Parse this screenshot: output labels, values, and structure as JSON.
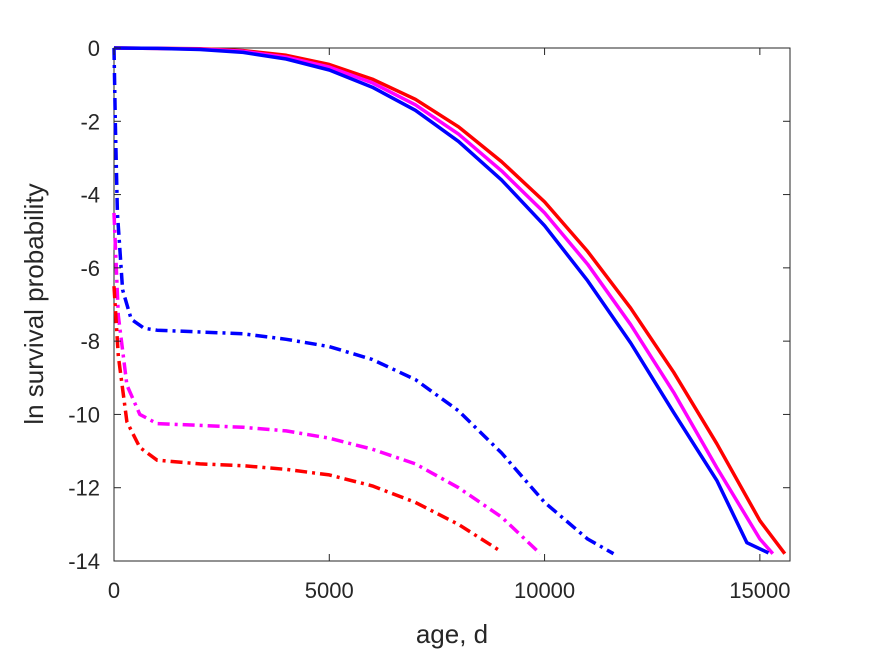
{
  "chart_data": {
    "type": "line",
    "title": "",
    "xlabel": "age, d",
    "ylabel": "ln survival probability",
    "xlim": [
      0,
      15700
    ],
    "ylim": [
      -14,
      0
    ],
    "xticks": [
      0,
      5000,
      10000,
      15000
    ],
    "yticks": [
      0,
      -2,
      -4,
      -6,
      -8,
      -10,
      -12,
      -14
    ],
    "xtick_labels": [
      "0",
      "5000",
      "10000",
      "15000"
    ],
    "ytick_labels": [
      "0",
      "-2",
      "-4",
      "-6",
      "-8",
      "-10",
      "-12",
      "-14"
    ],
    "grid": false,
    "legend": "none",
    "series": [
      {
        "color": "#ff0000",
        "style": "solid",
        "points": [
          [
            0,
            0
          ],
          [
            1000,
            -0.01
          ],
          [
            2000,
            -0.02
          ],
          [
            3000,
            -0.07
          ],
          [
            4000,
            -0.2
          ],
          [
            5000,
            -0.45
          ],
          [
            6000,
            -0.85
          ],
          [
            7000,
            -1.4
          ],
          [
            8000,
            -2.15
          ],
          [
            9000,
            -3.1
          ],
          [
            10000,
            -4.2
          ],
          [
            11000,
            -5.55
          ],
          [
            12000,
            -7.1
          ],
          [
            13000,
            -8.85
          ],
          [
            14000,
            -10.8
          ],
          [
            15000,
            -12.9
          ],
          [
            15580,
            -13.8
          ]
        ]
      },
      {
        "color": "#ff00ff",
        "style": "solid",
        "points": [
          [
            0,
            0
          ],
          [
            1000,
            -0.01
          ],
          [
            2000,
            -0.03
          ],
          [
            3000,
            -0.09
          ],
          [
            4000,
            -0.25
          ],
          [
            5000,
            -0.52
          ],
          [
            6000,
            -0.95
          ],
          [
            7000,
            -1.55
          ],
          [
            8000,
            -2.35
          ],
          [
            9000,
            -3.35
          ],
          [
            10000,
            -4.5
          ],
          [
            11000,
            -5.9
          ],
          [
            12000,
            -7.55
          ],
          [
            13000,
            -9.4
          ],
          [
            14000,
            -11.45
          ],
          [
            15000,
            -13.4
          ],
          [
            15300,
            -13.8
          ]
        ]
      },
      {
        "color": "#0000ff",
        "style": "solid",
        "points": [
          [
            0,
            0
          ],
          [
            1000,
            -0.01
          ],
          [
            2000,
            -0.04
          ],
          [
            3000,
            -0.12
          ],
          [
            4000,
            -0.3
          ],
          [
            5000,
            -0.6
          ],
          [
            6000,
            -1.07
          ],
          [
            7000,
            -1.7
          ],
          [
            8000,
            -2.55
          ],
          [
            9000,
            -3.6
          ],
          [
            10000,
            -4.85
          ],
          [
            11000,
            -6.35
          ],
          [
            12000,
            -8.05
          ],
          [
            13000,
            -9.95
          ],
          [
            14000,
            -11.8
          ],
          [
            14700,
            -13.5
          ],
          [
            15200,
            -13.78
          ]
        ]
      },
      {
        "color": "#0000ff",
        "style": "dashdot",
        "points": [
          [
            0,
            0
          ],
          [
            30,
            -2
          ],
          [
            80,
            -4.5
          ],
          [
            200,
            -6.6
          ],
          [
            400,
            -7.4
          ],
          [
            700,
            -7.65
          ],
          [
            1000,
            -7.7
          ],
          [
            2000,
            -7.75
          ],
          [
            3000,
            -7.8
          ],
          [
            4000,
            -7.95
          ],
          [
            5000,
            -8.15
          ],
          [
            6000,
            -8.5
          ],
          [
            7000,
            -9.05
          ],
          [
            8000,
            -9.9
          ],
          [
            9000,
            -11.05
          ],
          [
            10000,
            -12.4
          ],
          [
            11000,
            -13.4
          ],
          [
            11600,
            -13.8
          ]
        ]
      },
      {
        "color": "#ff00ff",
        "style": "dashdot",
        "points": [
          [
            0,
            -4.5
          ],
          [
            100,
            -7.3
          ],
          [
            300,
            -9.2
          ],
          [
            600,
            -10.0
          ],
          [
            1000,
            -10.25
          ],
          [
            2000,
            -10.3
          ],
          [
            3000,
            -10.35
          ],
          [
            4000,
            -10.45
          ],
          [
            5000,
            -10.65
          ],
          [
            6000,
            -10.95
          ],
          [
            7000,
            -11.35
          ],
          [
            8000,
            -12.0
          ],
          [
            9000,
            -12.8
          ],
          [
            9900,
            -13.8
          ]
        ]
      },
      {
        "color": "#ff0000",
        "style": "dashdot",
        "points": [
          [
            0,
            -6.5
          ],
          [
            100,
            -8.4
          ],
          [
            300,
            -10.2
          ],
          [
            600,
            -10.9
          ],
          [
            1000,
            -11.25
          ],
          [
            2000,
            -11.35
          ],
          [
            3000,
            -11.4
          ],
          [
            4000,
            -11.5
          ],
          [
            5000,
            -11.65
          ],
          [
            6000,
            -11.95
          ],
          [
            7000,
            -12.4
          ],
          [
            8000,
            -13.0
          ],
          [
            9000,
            -13.75
          ]
        ]
      }
    ]
  }
}
